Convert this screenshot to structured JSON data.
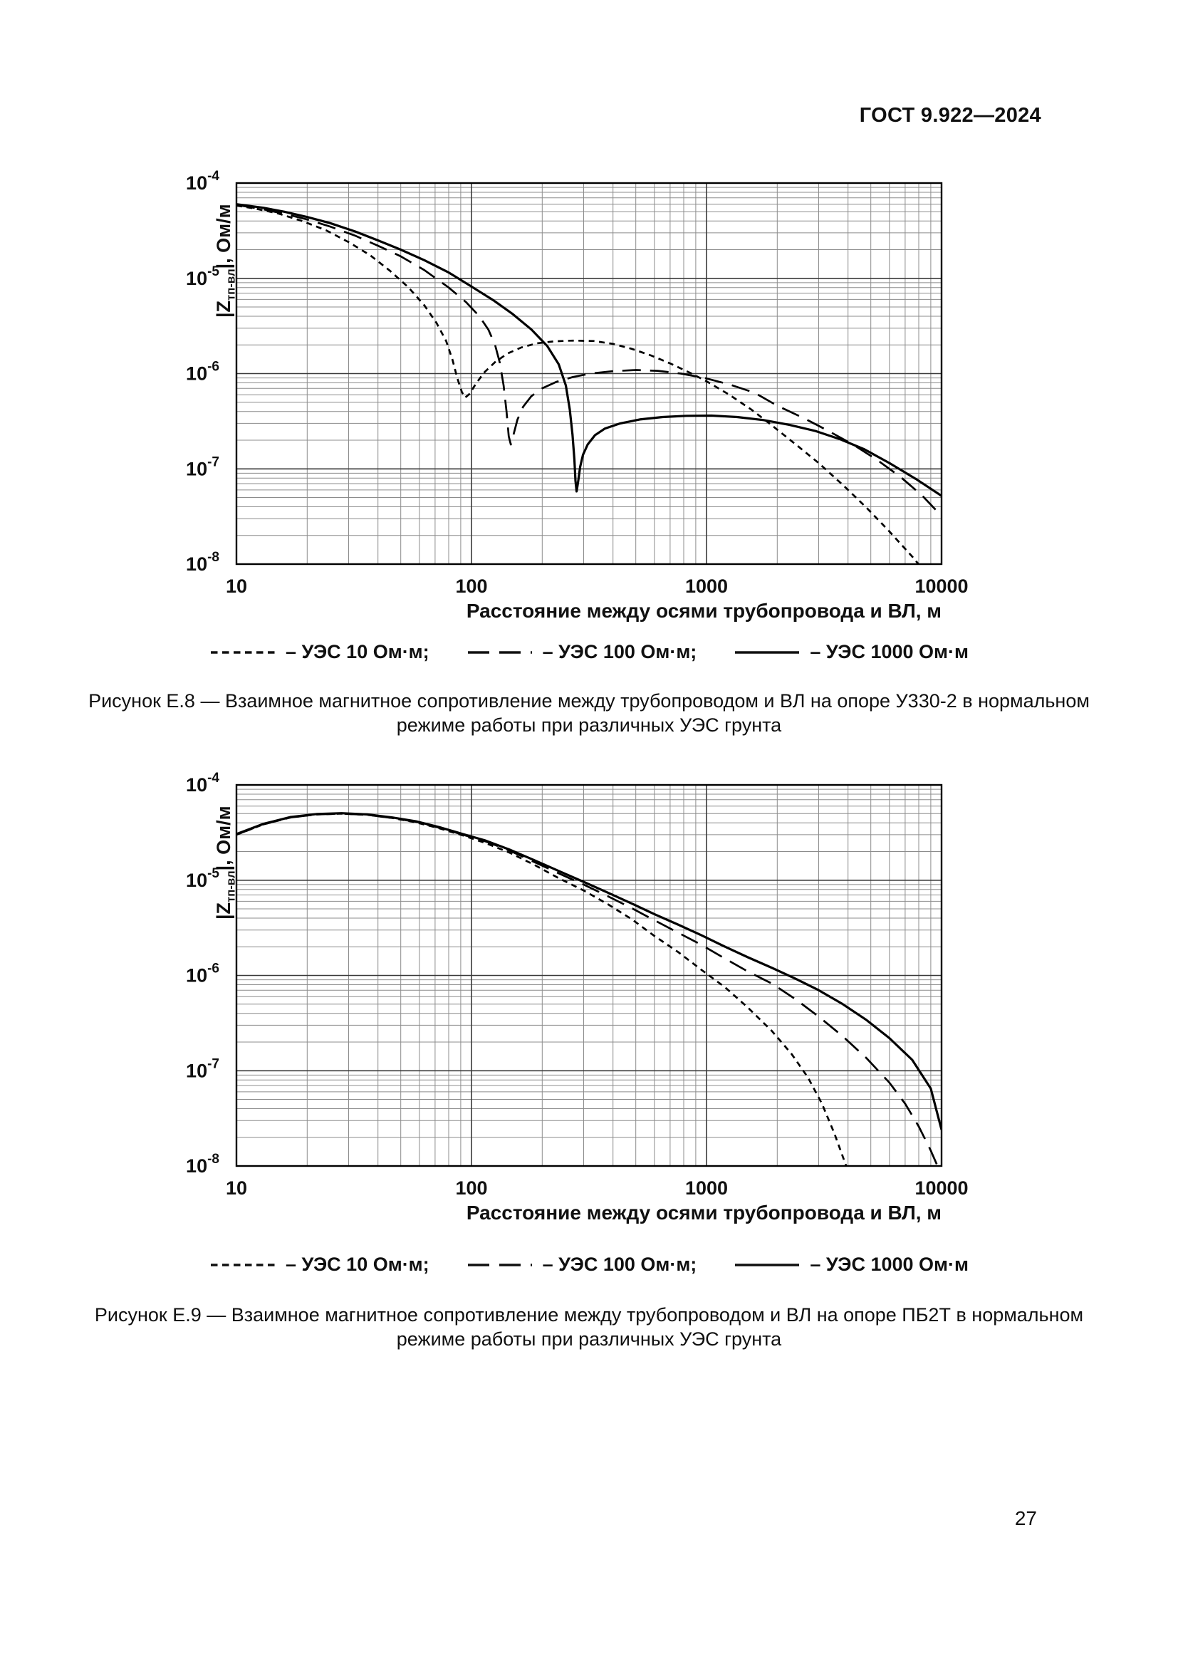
{
  "page": {
    "header": "ГОСТ 9.922—2024",
    "page_number": "27"
  },
  "axis": {
    "ylabel_pre": "|Z",
    "ylabel_sub": "тп-вл",
    "ylabel_post": "|, Ом/м"
  },
  "legend": {
    "items": [
      {
        "label": "– УЭС 10 Ом·м;",
        "dash": "short"
      },
      {
        "label": "– УЭС 100 Ом·м;",
        "dash": "long"
      },
      {
        "label": "– УЭС 1000 Ом·м",
        "dash": "solid"
      }
    ]
  },
  "chart_data": [
    {
      "type": "line",
      "title": "Рисунок Е.8 — Взаимное магнитное сопротивление между трубопроводом и ВЛ на опоре У330-2 в нормальном режиме работы при различных УЭС грунта",
      "caption_lines": [
        "Рисунок Е.8 — Взаимное магнитное сопротивление между трубопроводом и ВЛ на опоре У330-2 в нормальном",
        "режиме работы при различных УЭС грунта"
      ],
      "xlabel": "Расстояние между осями трубопровода и ВЛ, м",
      "ylabel": "|Zтп-вл|, Ом/м",
      "xscale": "log",
      "yscale": "log",
      "xlim": [
        10,
        10000
      ],
      "ylim": [
        1e-08,
        0.0001
      ],
      "x_ticks": [
        10,
        100,
        1000,
        10000
      ],
      "y_tick_exponents": [
        -4,
        -5,
        -6,
        -7,
        -8
      ],
      "grid": true,
      "legend_position": "bottom",
      "series": [
        {
          "name": "УЭС 10 Ом·м",
          "dash": "short",
          "points": [
            [
              10,
              5.8e-05
            ],
            [
              12,
              5.4e-05
            ],
            [
              15,
              4.8e-05
            ],
            [
              19,
              4e-05
            ],
            [
              24,
              3.2e-05
            ],
            [
              30,
              2.4e-05
            ],
            [
              37,
              1.75e-05
            ],
            [
              45,
              1.2e-05
            ],
            [
              54,
              8e-06
            ],
            [
              63,
              5.2e-06
            ],
            [
              71,
              3.4e-06
            ],
            [
              78,
              2.2e-06
            ],
            [
              83,
              1.4e-06
            ],
            [
              87,
              9e-07
            ],
            [
              91,
              6.4e-07
            ],
            [
              94,
              5.6e-07
            ],
            [
              98,
              6.1e-07
            ],
            [
              104,
              7.7e-07
            ],
            [
              113,
              1.02e-06
            ],
            [
              126,
              1.32e-06
            ],
            [
              142,
              1.62e-06
            ],
            [
              163,
              1.88e-06
            ],
            [
              190,
              2.08e-06
            ],
            [
              225,
              2.18e-06
            ],
            [
              270,
              2.22e-06
            ],
            [
              330,
              2.2e-06
            ],
            [
              400,
              2.05e-06
            ],
            [
              480,
              1.82e-06
            ],
            [
              580,
              1.55e-06
            ],
            [
              700,
              1.28e-06
            ],
            [
              850,
              1.02e-06
            ],
            [
              1000,
              8.3e-07
            ],
            [
              1250,
              6e-07
            ],
            [
              1550,
              4.2e-07
            ],
            [
              1900,
              2.85e-07
            ],
            [
              2400,
              1.8e-07
            ],
            [
              3000,
              1.15e-07
            ],
            [
              3800,
              6.8e-08
            ],
            [
              4800,
              3.9e-08
            ],
            [
              6000,
              2.2e-08
            ],
            [
              7500,
              1.2e-08
            ],
            [
              9000,
              7e-09
            ]
          ]
        },
        {
          "name": "УЭС 100 Ом·м",
          "dash": "long",
          "points": [
            [
              10,
              5.9e-05
            ],
            [
              13,
              5.3e-05
            ],
            [
              16,
              4.75e-05
            ],
            [
              20,
              4.15e-05
            ],
            [
              25,
              3.5e-05
            ],
            [
              32,
              2.8e-05
            ],
            [
              40,
              2.2e-05
            ],
            [
              50,
              1.7e-05
            ],
            [
              63,
              1.22e-05
            ],
            [
              80,
              8e-06
            ],
            [
              95,
              5.6e-06
            ],
            [
              108,
              4e-06
            ],
            [
              118,
              2.9e-06
            ],
            [
              126,
              2e-06
            ],
            [
              132,
              1.3e-06
            ],
            [
              137,
              7.5e-07
            ],
            [
              141,
              4e-07
            ],
            [
              144,
              2.2e-07
            ],
            [
              147,
              1.8e-07
            ],
            [
              151,
              2.3e-07
            ],
            [
              157,
              3.3e-07
            ],
            [
              166,
              4.5e-07
            ],
            [
              180,
              5.8e-07
            ],
            [
              200,
              7e-07
            ],
            [
              230,
              8.2e-07
            ],
            [
              270,
              9.2e-07
            ],
            [
              320,
              1e-06
            ],
            [
              400,
              1.06e-06
            ],
            [
              500,
              1.09e-06
            ],
            [
              620,
              1.07e-06
            ],
            [
              780,
              1e-06
            ],
            [
              980,
              9e-07
            ],
            [
              1250,
              7.7e-07
            ],
            [
              1600,
              6.3e-07
            ],
            [
              2000,
              4.6e-07
            ],
            [
              2600,
              3.4e-07
            ],
            [
              3300,
              2.5e-07
            ],
            [
              4200,
              1.8e-07
            ],
            [
              5300,
              1.25e-07
            ],
            [
              6700,
              8.2e-08
            ],
            [
              8300,
              5.2e-08
            ],
            [
              10000,
              3.2e-08
            ]
          ]
        },
        {
          "name": "УЭС 1000 Ом·м",
          "dash": "solid",
          "points": [
            [
              10,
              6e-05
            ],
            [
              13,
              5.5e-05
            ],
            [
              16,
              5e-05
            ],
            [
              20,
              4.4e-05
            ],
            [
              25,
              3.8e-05
            ],
            [
              32,
              3.1e-05
            ],
            [
              40,
              2.5e-05
            ],
            [
              50,
              2e-05
            ],
            [
              63,
              1.55e-05
            ],
            [
              80,
              1.15e-05
            ],
            [
              100,
              8.2e-06
            ],
            [
              125,
              5.8e-06
            ],
            [
              150,
              4.2e-06
            ],
            [
              180,
              2.9e-06
            ],
            [
              210,
              1.95e-06
            ],
            [
              235,
              1.25e-06
            ],
            [
              252,
              7.5e-07
            ],
            [
              262,
              4.2e-07
            ],
            [
              269,
              2.3e-07
            ],
            [
              274,
              1.25e-07
            ],
            [
              277,
              7.5e-08
            ],
            [
              280,
              5.8e-08
            ],
            [
              284,
              7.2e-08
            ],
            [
              290,
              1.05e-07
            ],
            [
              298,
              1.4e-07
            ],
            [
              312,
              1.8e-07
            ],
            [
              335,
              2.25e-07
            ],
            [
              370,
              2.65e-07
            ],
            [
              430,
              3e-07
            ],
            [
              520,
              3.3e-07
            ],
            [
              650,
              3.5e-07
            ],
            [
              820,
              3.6e-07
            ],
            [
              1050,
              3.62e-07
            ],
            [
              1350,
              3.5e-07
            ],
            [
              1750,
              3.25e-07
            ],
            [
              2250,
              2.9e-07
            ],
            [
              2900,
              2.5e-07
            ],
            [
              3700,
              2.05e-07
            ],
            [
              4700,
              1.6e-07
            ],
            [
              6000,
              1.15e-07
            ],
            [
              7800,
              7.8e-08
            ],
            [
              10000,
              5.2e-08
            ]
          ]
        }
      ]
    },
    {
      "type": "line",
      "title": "Рисунок Е.9 — Взаимное магнитное сопротивление между трубопроводом и ВЛ на опоре ПБ2Т в нормальном режиме работы при различных УЭС грунта",
      "caption_lines": [
        "Рисунок Е.9 — Взаимное магнитное сопротивление между трубопроводом и ВЛ на опоре ПБ2Т в нормальном",
        "режиме работы при различных УЭС грунта"
      ],
      "xlabel": "Расстояние между осями трубопровода и ВЛ, м",
      "ylabel": "|Zтп-вл|, Ом/м",
      "xscale": "log",
      "yscale": "log",
      "xlim": [
        10,
        10000
      ],
      "ylim": [
        1e-08,
        0.0001
      ],
      "x_ticks": [
        10,
        100,
        1000,
        10000
      ],
      "y_tick_exponents": [
        -4,
        -5,
        -6,
        -7,
        -8
      ],
      "grid": true,
      "legend_position": "bottom",
      "series": [
        {
          "name": "УЭС 10 Ом·м",
          "dash": "short",
          "points": [
            [
              10,
              3e-05
            ],
            [
              13,
              3.85e-05
            ],
            [
              17,
              4.55e-05
            ],
            [
              22,
              4.9e-05
            ],
            [
              28,
              5e-05
            ],
            [
              36,
              4.85e-05
            ],
            [
              46,
              4.5e-05
            ],
            [
              58,
              4.05e-05
            ],
            [
              73,
              3.5e-05
            ],
            [
              92,
              2.95e-05
            ],
            [
              115,
              2.45e-05
            ],
            [
              145,
              1.95e-05
            ],
            [
              185,
              1.45e-05
            ],
            [
              235,
              1.05e-05
            ],
            [
              300,
              7.8e-06
            ],
            [
              380,
              5.6e-06
            ],
            [
              480,
              3.9e-06
            ],
            [
              600,
              2.6e-06
            ],
            [
              760,
              1.75e-06
            ],
            [
              950,
              1.15e-06
            ],
            [
              1200,
              7.5e-07
            ],
            [
              1500,
              4.6e-07
            ],
            [
              1900,
              2.6e-07
            ],
            [
              2300,
              1.5e-07
            ],
            [
              2700,
              8.5e-08
            ],
            [
              3100,
              4.5e-08
            ],
            [
              3500,
              2.2e-08
            ],
            [
              3900,
              1.05e-08
            ],
            [
              4200,
              6.5e-09
            ]
          ]
        },
        {
          "name": "УЭС 100 Ом·м",
          "dash": "long",
          "points": [
            [
              10,
              3e-05
            ],
            [
              13,
              3.85e-05
            ],
            [
              17,
              4.55e-05
            ],
            [
              22,
              4.9e-05
            ],
            [
              28,
              5e-05
            ],
            [
              36,
              4.85e-05
            ],
            [
              46,
              4.5e-05
            ],
            [
              58,
              4.1e-05
            ],
            [
              73,
              3.55e-05
            ],
            [
              92,
              3e-05
            ],
            [
              115,
              2.55e-05
            ],
            [
              145,
              2.05e-05
            ],
            [
              185,
              1.55e-05
            ],
            [
              235,
              1.18e-05
            ],
            [
              300,
              9e-06
            ],
            [
              380,
              6.8e-06
            ],
            [
              480,
              5.1e-06
            ],
            [
              600,
              3.8e-06
            ],
            [
              760,
              2.8e-06
            ],
            [
              950,
              2.1e-06
            ],
            [
              1200,
              1.5e-06
            ],
            [
              1500,
              1.1e-06
            ],
            [
              1900,
              8.2e-07
            ],
            [
              2400,
              5.6e-07
            ],
            [
              3000,
              3.7e-07
            ],
            [
              3800,
              2.3e-07
            ],
            [
              4800,
              1.35e-07
            ],
            [
              6000,
              7.5e-08
            ],
            [
              7000,
              4.5e-08
            ],
            [
              8000,
              2.6e-08
            ],
            [
              9000,
              1.45e-08
            ],
            [
              10000,
              8e-09
            ]
          ]
        },
        {
          "name": "УЭС 1000 Ом·м",
          "dash": "solid",
          "points": [
            [
              10,
              3.05e-05
            ],
            [
              13,
              3.9e-05
            ],
            [
              17,
              4.6e-05
            ],
            [
              22,
              4.95e-05
            ],
            [
              28,
              5.05e-05
            ],
            [
              36,
              4.9e-05
            ],
            [
              46,
              4.55e-05
            ],
            [
              58,
              4.15e-05
            ],
            [
              73,
              3.6e-05
            ],
            [
              92,
              3.05e-05
            ],
            [
              115,
              2.6e-05
            ],
            [
              145,
              2.1e-05
            ],
            [
              185,
              1.62e-05
            ],
            [
              235,
              1.25e-05
            ],
            [
              300,
              9.6e-06
            ],
            [
              380,
              7.4e-06
            ],
            [
              480,
              5.7e-06
            ],
            [
              600,
              4.4e-06
            ],
            [
              760,
              3.4e-06
            ],
            [
              950,
              2.65e-06
            ],
            [
              1200,
              2e-06
            ],
            [
              1500,
              1.55e-06
            ],
            [
              1900,
              1.2e-06
            ],
            [
              2400,
              9.2e-07
            ],
            [
              3000,
              7e-07
            ],
            [
              3800,
              5e-07
            ],
            [
              4800,
              3.4e-07
            ],
            [
              6000,
              2.2e-07
            ],
            [
              7500,
              1.3e-07
            ],
            [
              9000,
              6.5e-08
            ],
            [
              10000,
              2.4e-08
            ]
          ]
        }
      ]
    }
  ]
}
